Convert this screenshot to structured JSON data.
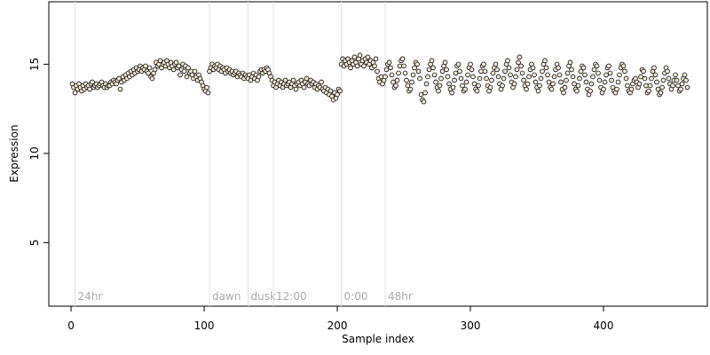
{
  "chart_data": {
    "type": "scatter",
    "xlabel": "Sample index",
    "ylabel": "Expression",
    "xlim": [
      -16.7,
      478
    ],
    "ylim": [
      1.44,
      18.5
    ],
    "xticks": [
      0,
      100,
      200,
      300,
      400
    ],
    "yticks": [
      5,
      10,
      15
    ],
    "color": "#f4ead8",
    "annotations": [
      {
        "x": 3,
        "label": "24hr"
      },
      {
        "x": 104,
        "label": "dawn"
      },
      {
        "x": 133,
        "label": "dusk"
      },
      {
        "x": 152,
        "label": "12:00"
      },
      {
        "x": 203,
        "label": "0:00"
      },
      {
        "x": 236,
        "label": "48hr"
      }
    ],
    "x": [
      1,
      2,
      3,
      4,
      5,
      6,
      7,
      8,
      9,
      10,
      11,
      12,
      13,
      14,
      15,
      16,
      17,
      18,
      19,
      20,
      21,
      22,
      23,
      24,
      25,
      26,
      27,
      28,
      29,
      30,
      31,
      32,
      33,
      34,
      35,
      36,
      37,
      38,
      39,
      40,
      41,
      42,
      43,
      44,
      45,
      46,
      47,
      48,
      49,
      50,
      51,
      52,
      53,
      54,
      55,
      56,
      57,
      58,
      59,
      60,
      61,
      62,
      63,
      64,
      65,
      66,
      67,
      68,
      69,
      70,
      71,
      72,
      73,
      74,
      75,
      76,
      77,
      78,
      79,
      80,
      81,
      82,
      83,
      84,
      85,
      86,
      87,
      88,
      89,
      90,
      91,
      92,
      93,
      94,
      95,
      96,
      97,
      98,
      99,
      100,
      101,
      102,
      103,
      104,
      105,
      106,
      107,
      108,
      109,
      110,
      111,
      112,
      113,
      114,
      115,
      116,
      117,
      118,
      119,
      120,
      121,
      122,
      123,
      124,
      125,
      126,
      127,
      128,
      129,
      130,
      131,
      132,
      133,
      134,
      135,
      136,
      137,
      138,
      139,
      140,
      141,
      142,
      143,
      144,
      145,
      146,
      147,
      148,
      149,
      150,
      151,
      152,
      153,
      154,
      155,
      156,
      157,
      158,
      159,
      160,
      161,
      162,
      163,
      164,
      165,
      166,
      167,
      168,
      169,
      170,
      171,
      172,
      173,
      174,
      175,
      176,
      177,
      178,
      179,
      180,
      181,
      182,
      183,
      184,
      185,
      186,
      187,
      188,
      189,
      190,
      191,
      192,
      193,
      194,
      195,
      196,
      197,
      198,
      199,
      200,
      201,
      202,
      203,
      204,
      205,
      206,
      207,
      208,
      209,
      210,
      211,
      212,
      213,
      214,
      215,
      216,
      217,
      218,
      219,
      220,
      221,
      222,
      223,
      224,
      225,
      226,
      227,
      228,
      229,
      230,
      231,
      232,
      233,
      234,
      235,
      236,
      237,
      238,
      239,
      240,
      241,
      242,
      243,
      244,
      245,
      246,
      247,
      248,
      249,
      250,
      251,
      252,
      253,
      254,
      255,
      256,
      257,
      258,
      259,
      260,
      261,
      262,
      263,
      264,
      265,
      266,
      267,
      268,
      269,
      270,
      271,
      272,
      273,
      274,
      275,
      276,
      277,
      278,
      279,
      280,
      281,
      282,
      283,
      284,
      285,
      286,
      287,
      288,
      289,
      290,
      291,
      292,
      293,
      294,
      295,
      296,
      297,
      298,
      299,
      300,
      301,
      302,
      303,
      304,
      305,
      306,
      307,
      308,
      309,
      310,
      311,
      312,
      313,
      314,
      315,
      316,
      317,
      318,
      319,
      320,
      321,
      322,
      323,
      324,
      325,
      326,
      327,
      328,
      329,
      330,
      331,
      332,
      333,
      334,
      335,
      336,
      337,
      338,
      339,
      340,
      341,
      342,
      343,
      344,
      345,
      346,
      347,
      348,
      349,
      350,
      351,
      352,
      353,
      354,
      355,
      356,
      357,
      358,
      359,
      360,
      361,
      362,
      363,
      364,
      365,
      366,
      367,
      368,
      369,
      370,
      371,
      372,
      373,
      374,
      375,
      376,
      377,
      378,
      379,
      380,
      381,
      382,
      383,
      384,
      385,
      386,
      387,
      388,
      389,
      390,
      391,
      392,
      393,
      394,
      395,
      396,
      397,
      398,
      399,
      400,
      401,
      402,
      403,
      404,
      405,
      406,
      407,
      408,
      409,
      410,
      411,
      412,
      413,
      414,
      415,
      416,
      417,
      418,
      419,
      420,
      421,
      422,
      423,
      424,
      425,
      426,
      427,
      428,
      429,
      430,
      431,
      432,
      433,
      434,
      435,
      436,
      437,
      438,
      439,
      440,
      441,
      442,
      443,
      444,
      445,
      446,
      447,
      448,
      449,
      450,
      451,
      452,
      453,
      454,
      455,
      456,
      457,
      458,
      459,
      460,
      461,
      462,
      463
    ],
    "values": [
      13.9,
      13.7,
      13.4,
      13.8,
      13.6,
      13.9,
      13.7,
      13.5,
      13.8,
      13.6,
      13.9,
      13.7,
      13.8,
      13.6,
      13.9,
      14.0,
      13.7,
      13.8,
      13.9,
      13.7,
      13.8,
      13.9,
      14.0,
      13.8,
      13.7,
      13.9,
      13.7,
      13.8,
      13.8,
      14.0,
      13.9,
      14.1,
      14.0,
      13.9,
      14.1,
      14.2,
      13.6,
      14.0,
      14.3,
      14.1,
      14.4,
      14.2,
      14.5,
      14.3,
      14.6,
      14.4,
      14.7,
      14.5,
      14.8,
      14.6,
      14.7,
      14.9,
      14.6,
      14.8,
      14.7,
      14.9,
      14.6,
      14.5,
      14.8,
      14.3,
      14.2,
      14.5,
      14.7,
      15.1,
      14.9,
      15.0,
      15.2,
      14.8,
      15.0,
      15.1,
      14.9,
      15.2,
      15.0,
      14.8,
      15.1,
      14.9,
      14.7,
      15.0,
      15.1,
      14.8,
      14.9,
      14.4,
      14.7,
      15.0,
      14.6,
      14.9,
      14.3,
      14.8,
      14.5,
      14.6,
      14.4,
      14.2,
      14.6,
      14.3,
      14.1,
      14.4,
      14.2,
      14.0,
      13.8,
      13.6,
      13.5,
      13.7,
      13.4,
      14.6,
      14.8,
      15.0,
      14.7,
      14.9,
      14.8,
      15.0,
      14.7,
      14.9,
      14.6,
      14.8,
      14.7,
      14.5,
      14.8,
      14.6,
      14.7,
      14.5,
      14.6,
      14.4,
      14.5,
      14.6,
      14.3,
      14.5,
      14.4,
      14.3,
      14.5,
      14.2,
      14.4,
      14.3,
      14.2,
      14.4,
      14.1,
      14.3,
      14.5,
      14.2,
      14.4,
      14.1,
      14.3,
      14.6,
      14.7,
      14.5,
      14.7,
      14.6,
      14.8,
      14.7,
      14.5,
      14.3,
      14.1,
      13.8,
      14.0,
      13.7,
      13.9,
      14.1,
      13.8,
      14.0,
      13.7,
      13.9,
      14.1,
      13.8,
      13.9,
      14.0,
      13.7,
      13.9,
      14.1,
      13.8,
      13.6,
      13.9,
      14.0,
      13.8,
      14.1,
      13.9,
      13.7,
      14.0,
      14.2,
      13.9,
      13.8,
      14.1,
      13.9,
      14.0,
      13.7,
      13.9,
      13.6,
      13.8,
      13.7,
      14.0,
      13.6,
      13.5,
      13.7,
      13.4,
      13.6,
      13.3,
      13.5,
      13.2,
      13.0,
      13.4,
      13.1,
      13.3,
      13.6,
      13.5,
      15.0,
      15.3,
      14.9,
      15.2,
      15.0,
      15.3,
      15.1,
      14.8,
      15.2,
      15.0,
      15.4,
      15.1,
      14.9,
      15.3,
      15.5,
      15.0,
      15.2,
      14.9,
      15.3,
      15.1,
      15.4,
      15.0,
      15.2,
      14.8,
      15.1,
      14.9,
      15.3,
      14.6,
      14.2,
      14.0,
      14.3,
      13.9,
      14.1,
      14.3,
      14.7,
      15.0,
      15.1,
      14.8,
      14.4,
      14.0,
      13.7,
      13.8,
      14.1,
      14.5,
      14.9,
      15.2,
      15.3,
      14.9,
      14.5,
      14.1,
      13.8,
      13.5,
      13.6,
      14.0,
      14.4,
      14.8,
      15.1,
      15.0,
      14.6,
      14.2,
      13.3,
      13.0,
      12.9,
      13.4,
      13.9,
      14.3,
      14.7,
      15.0,
      15.2,
      14.8,
      14.4,
      14.0,
      13.7,
      13.5,
      13.8,
      14.2,
      14.6,
      14.9,
      15.1,
      14.7,
      14.3,
      13.9,
      13.6,
      13.4,
      13.7,
      14.1,
      14.5,
      14.9,
      15.0,
      14.6,
      14.2,
      13.8,
      13.5,
      13.6,
      14.0,
      14.4,
      14.8,
      15.0,
      14.7,
      14.3,
      13.9,
      13.6,
      13.5,
      13.8,
      14.2,
      14.6,
      14.9,
      15.0,
      14.6,
      14.2,
      13.8,
      13.5,
      13.7,
      14.1,
      14.5,
      14.8,
      15.0,
      14.7,
      14.3,
      13.9,
      13.6,
      13.8,
      14.2,
      14.6,
      15.0,
      15.2,
      14.8,
      14.4,
      14.0,
      13.7,
      13.9,
      14.3,
      14.7,
      15.1,
      15.4,
      14.9,
      14.5,
      14.1,
      13.8,
      13.6,
      13.9,
      14.3,
      14.7,
      15.0,
      14.8,
      14.4,
      14.0,
      13.7,
      13.5,
      13.8,
      14.2,
      14.6,
      15.0,
      15.2,
      14.8,
      14.4,
      14.0,
      13.7,
      13.6,
      13.9,
      14.3,
      14.7,
      15.0,
      14.8,
      14.4,
      14.0,
      13.6,
      13.4,
      13.7,
      14.1,
      14.5,
      14.9,
      15.1,
      14.7,
      14.3,
      13.9,
      13.6,
      13.5,
      13.8,
      14.2,
      14.6,
      14.9,
      14.8,
      14.4,
      14.0,
      13.6,
      13.3,
      13.5,
      13.9,
      14.3,
      14.7,
      15.0,
      14.9,
      14.5,
      14.1,
      13.7,
      13.4,
      13.6,
      14.0,
      14.4,
      14.8,
      14.9,
      14.5,
      14.1,
      13.7,
      13.5,
      13.4,
      13.6,
      14.0,
      14.4,
      14.8,
      15.0,
      14.9,
      14.6,
      14.2,
      13.8,
      13.5,
      13.4,
      13.6,
      13.9,
      14.1,
      14.2,
      14.0,
      13.7,
      13.9,
      14.3,
      14.7,
      14.6,
      14.2,
      13.8,
      13.4,
      13.5,
      13.8,
      14.2,
      14.6,
      14.8,
      14.4,
      14.0,
      13.6,
      13.3,
      13.4,
      13.7,
      14.1,
      14.5,
      14.8,
      14.6,
      14.2,
      13.9,
      13.6,
      13.8,
      14.1,
      14.4,
      14.1,
      13.8,
      13.5,
      13.6,
      13.9,
      14.2,
      14.4,
      14.1,
      13.7
    ]
  }
}
